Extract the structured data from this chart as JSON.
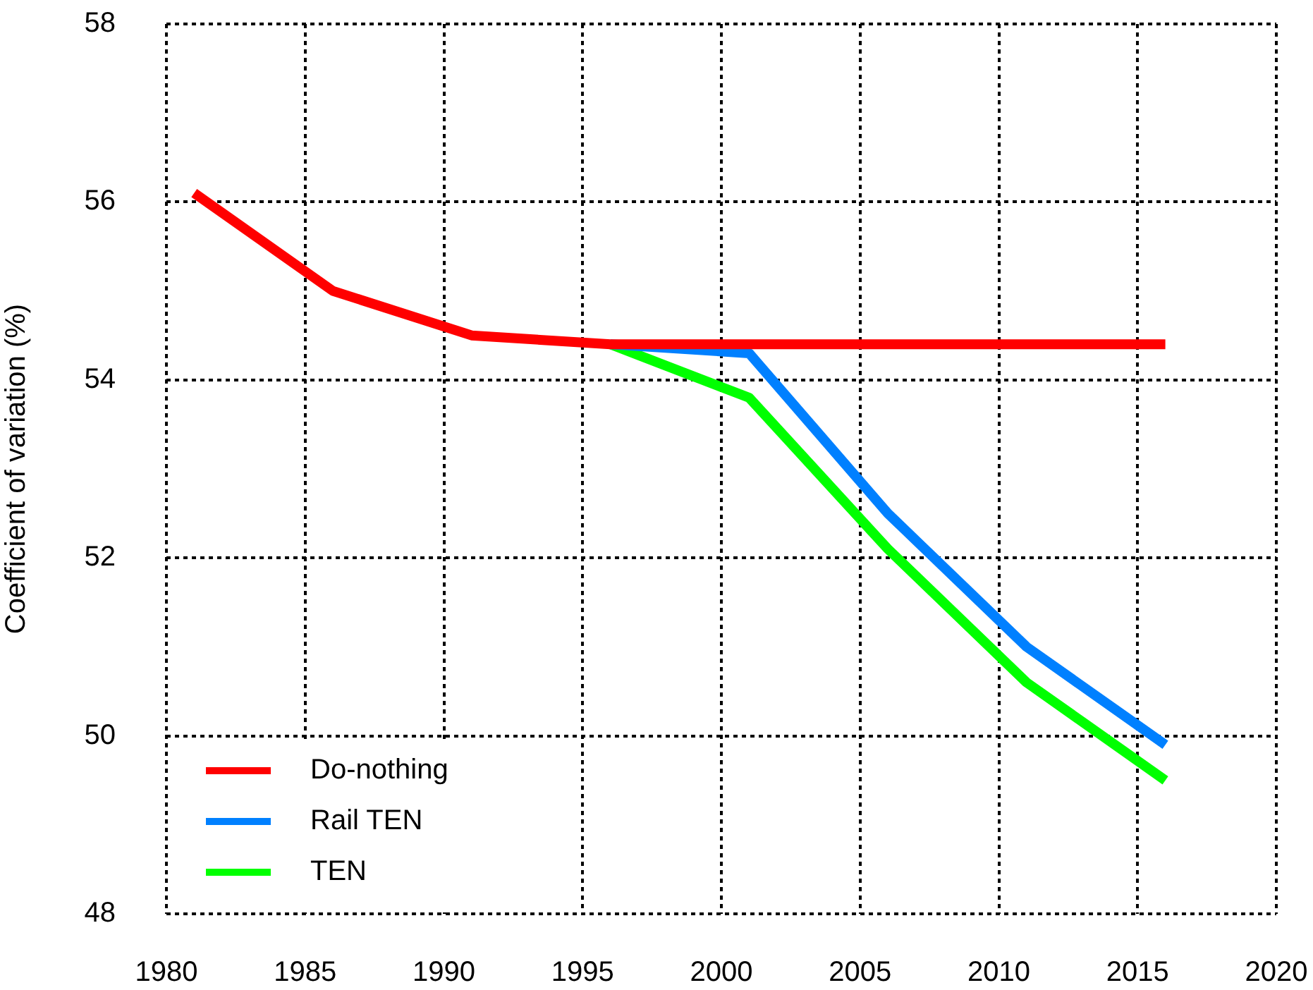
{
  "chart_data": {
    "type": "line",
    "ylabel": "Coefficient of variation (%)",
    "series": [
      {
        "name": "Do-nothing",
        "color": "#ff0000",
        "x": [
          1981,
          1986,
          1991,
          1996,
          2001,
          2006,
          2011,
          2016
        ],
        "values": [
          56.1,
          55.0,
          54.5,
          54.4,
          54.4,
          54.4,
          54.4,
          54.4
        ]
      },
      {
        "name": "Rail TEN",
        "color": "#0080ff",
        "x": [
          1996,
          2001,
          2006,
          2011,
          2016
        ],
        "values": [
          54.4,
          54.3,
          52.5,
          51.0,
          49.9
        ]
      },
      {
        "name": "TEN",
        "color": "#00ff00",
        "x": [
          1996,
          2001,
          2006,
          2011,
          2016
        ],
        "values": [
          54.4,
          53.8,
          52.1,
          50.6,
          49.5
        ]
      }
    ],
    "xlim": [
      1980,
      2020
    ],
    "ylim": [
      48,
      58
    ],
    "xticks": [
      1980,
      1985,
      1990,
      1995,
      2000,
      2005,
      2010,
      2015,
      2020
    ],
    "yticks": [
      48,
      50,
      52,
      54,
      56,
      58
    ],
    "grid": true,
    "legend": "bottom left",
    "marker": "none",
    "line_style": "solid"
  }
}
